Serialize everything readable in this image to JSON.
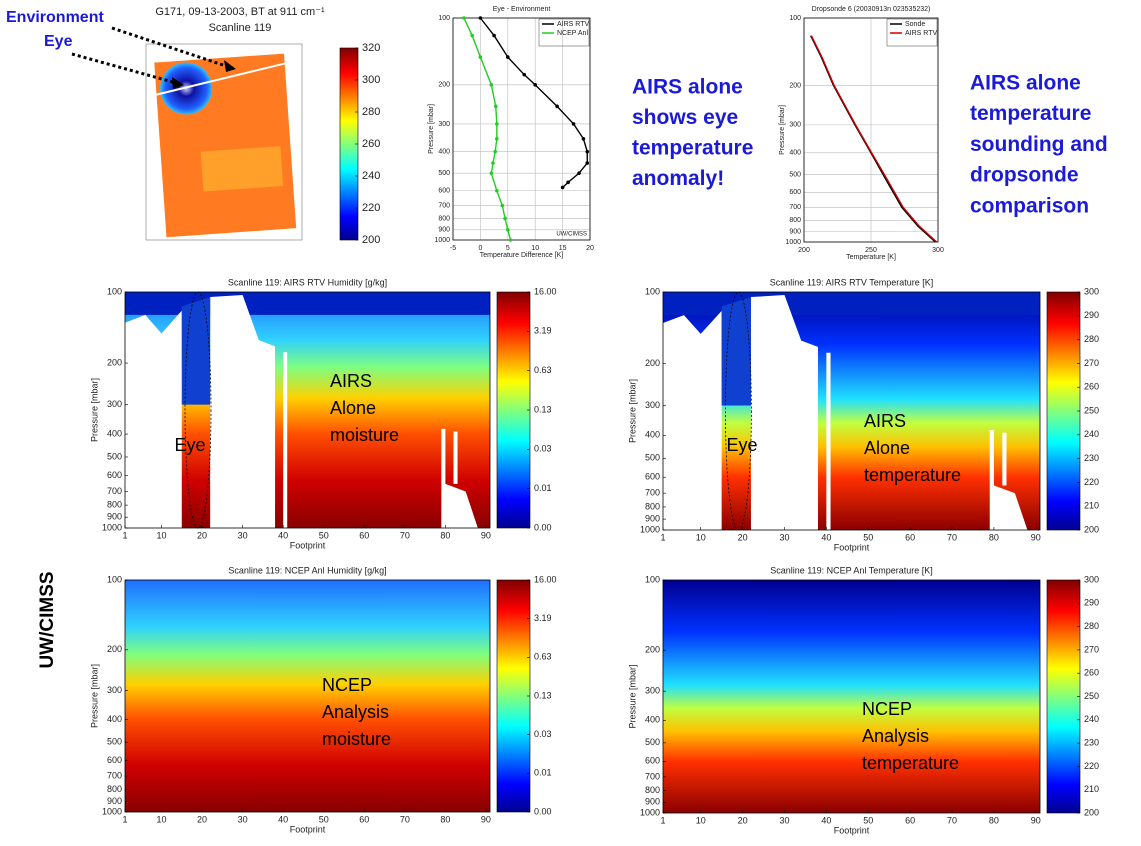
{
  "side_label": "UW/CIMSS",
  "callouts": [
    [
      "AIRS alone",
      "shows eye",
      "temperature",
      "anomaly!"
    ],
    [
      "AIRS alone",
      "temperature",
      "sounding and",
      "dropsonde",
      "comparison"
    ]
  ],
  "chart_data": [
    {
      "type": "image",
      "title": "G171, 09-13-2003, BT at 911 cm⁻¹",
      "subtitle": "Scanline 119",
      "labels": [
        "Environment",
        "Eye"
      ],
      "colorbar_lim": [
        200,
        320
      ],
      "colorbar_ticks": [
        200,
        220,
        240,
        260,
        280,
        300,
        320
      ]
    },
    {
      "type": "line",
      "title": "Eye - Environment",
      "xlabel": "Temperature Difference [K]",
      "ylabel": "Pressure [mbar]",
      "footer": "UW/CIMSS",
      "xlim": [
        -5,
        20
      ],
      "xticks": [
        -5,
        0,
        5,
        10,
        15,
        20
      ],
      "ylim": [
        100,
        1000
      ],
      "yticks": [
        100,
        200,
        300,
        400,
        500,
        600,
        700,
        800,
        900,
        1000
      ],
      "log_y": true,
      "y_inverted": true,
      "grid": true,
      "series": [
        {
          "name": "AIRS RTV",
          "color": "#000000",
          "y": [
            100,
            120,
            150,
            180,
            200,
            250,
            300,
            350,
            400,
            450,
            500,
            550,
            580
          ],
          "values": [
            0,
            2.5,
            5,
            8,
            10,
            14,
            17,
            18.8,
            19.5,
            19.5,
            18,
            16,
            15
          ]
        },
        {
          "name": "NCEP Anl",
          "color": "#22cc22",
          "y": [
            100,
            120,
            150,
            200,
            250,
            300,
            350,
            400,
            450,
            500,
            600,
            700,
            800,
            900,
            1000
          ],
          "values": [
            -3,
            -1.5,
            0,
            2,
            2.8,
            3,
            3,
            2.7,
            2.3,
            2,
            3,
            4,
            4.5,
            5,
            5.5
          ]
        }
      ]
    },
    {
      "type": "line",
      "title": "Dropsonde 6 (20030913n 023535232)",
      "xlabel": "Temperature [K]",
      "ylabel": "Pressure [mbar]",
      "xlim": [
        200,
        300
      ],
      "xticks": [
        200,
        250,
        300
      ],
      "ylim": [
        100,
        1000
      ],
      "yticks": [
        100,
        200,
        300,
        400,
        500,
        600,
        700,
        800,
        900,
        1000
      ],
      "log_y": true,
      "y_inverted": true,
      "grid": true,
      "series": [
        {
          "name": "Sonde",
          "color": "#000000",
          "y": [
            120,
            150,
            200,
            300,
            400,
            500,
            700,
            850,
            1000
          ],
          "values": [
            205,
            213,
            222,
            238,
            250,
            259,
            273,
            285,
            298
          ]
        },
        {
          "name": "AIRS RTV",
          "color": "#cc0000",
          "y": [
            120,
            150,
            200,
            300,
            400,
            500,
            700,
            850,
            1000
          ],
          "values": [
            205.5,
            213.5,
            222.5,
            238.5,
            250.5,
            260,
            274,
            286,
            299
          ]
        }
      ]
    },
    {
      "type": "heatmap",
      "title": "Scanline 119: AIRS RTV Humidity [g/kg]",
      "xlabel": "Footprint",
      "ylabel": "Pressure [mbar]",
      "xlim": [
        1,
        91
      ],
      "xticks": [
        1,
        10,
        20,
        30,
        40,
        50,
        60,
        70,
        80,
        90
      ],
      "ylim": [
        100,
        1000
      ],
      "yticks": [
        100,
        200,
        300,
        400,
        500,
        600,
        700,
        800,
        900,
        1000
      ],
      "log_y": true,
      "y_inverted": true,
      "colorbar_ticks": [
        {
          "value": 0,
          "label": "0.00"
        },
        0.01,
        0.03,
        0.13,
        0.63,
        3.19,
        {
          "value": 16,
          "label": "16.00"
        }
      ],
      "labels": [
        "Eye"
      ],
      "note": [
        "AIRS",
        "Alone",
        "moisture"
      ]
    },
    {
      "type": "heatmap",
      "title": "Scanline 119: AIRS RTV Temperature [K]",
      "xlabel": "Footprint",
      "ylabel": "Pressure [mbar]",
      "xlim": [
        1,
        91
      ],
      "xticks": [
        1,
        10,
        20,
        30,
        40,
        50,
        60,
        70,
        80,
        90
      ],
      "ylim": [
        100,
        1000
      ],
      "yticks": [
        100,
        200,
        300,
        400,
        500,
        600,
        700,
        800,
        900,
        1000
      ],
      "log_y": true,
      "y_inverted": true,
      "colorbar_ticks": [
        200,
        210,
        220,
        230,
        240,
        250,
        260,
        270,
        280,
        290,
        300
      ],
      "labels": [
        "Eye"
      ],
      "note": [
        "AIRS",
        "Alone",
        "temperature"
      ]
    },
    {
      "type": "heatmap",
      "title": "Scanline 119: NCEP Anl Humidity [g/kg]",
      "xlabel": "Footprint",
      "ylabel": "Pressure [mbar]",
      "xlim": [
        1,
        91
      ],
      "xticks": [
        1,
        10,
        20,
        30,
        40,
        50,
        60,
        70,
        80,
        90
      ],
      "ylim": [
        100,
        1000
      ],
      "yticks": [
        100,
        200,
        300,
        400,
        500,
        600,
        700,
        800,
        900,
        1000
      ],
      "log_y": true,
      "y_inverted": true,
      "colorbar_ticks": [
        {
          "value": 0,
          "label": "0.00"
        },
        0.01,
        0.03,
        0.13,
        0.63,
        3.19,
        {
          "value": 16,
          "label": "16.00"
        }
      ],
      "note": [
        "NCEP",
        "Analysis",
        "moisture"
      ]
    },
    {
      "type": "heatmap",
      "title": "Scanline 119: NCEP Anl Temperature [K]",
      "xlabel": "Footprint",
      "ylabel": "Pressure [mbar]",
      "xlim": [
        1,
        91
      ],
      "xticks": [
        1,
        10,
        20,
        30,
        40,
        50,
        60,
        70,
        80,
        90
      ],
      "ylim": [
        100,
        1000
      ],
      "yticks": [
        100,
        200,
        300,
        400,
        500,
        600,
        700,
        800,
        900,
        1000
      ],
      "log_y": true,
      "y_inverted": true,
      "colorbar_ticks": [
        200,
        210,
        220,
        230,
        240,
        250,
        260,
        270,
        280,
        290,
        300
      ],
      "note": [
        "NCEP",
        "Analysis",
        "temperature"
      ]
    }
  ]
}
